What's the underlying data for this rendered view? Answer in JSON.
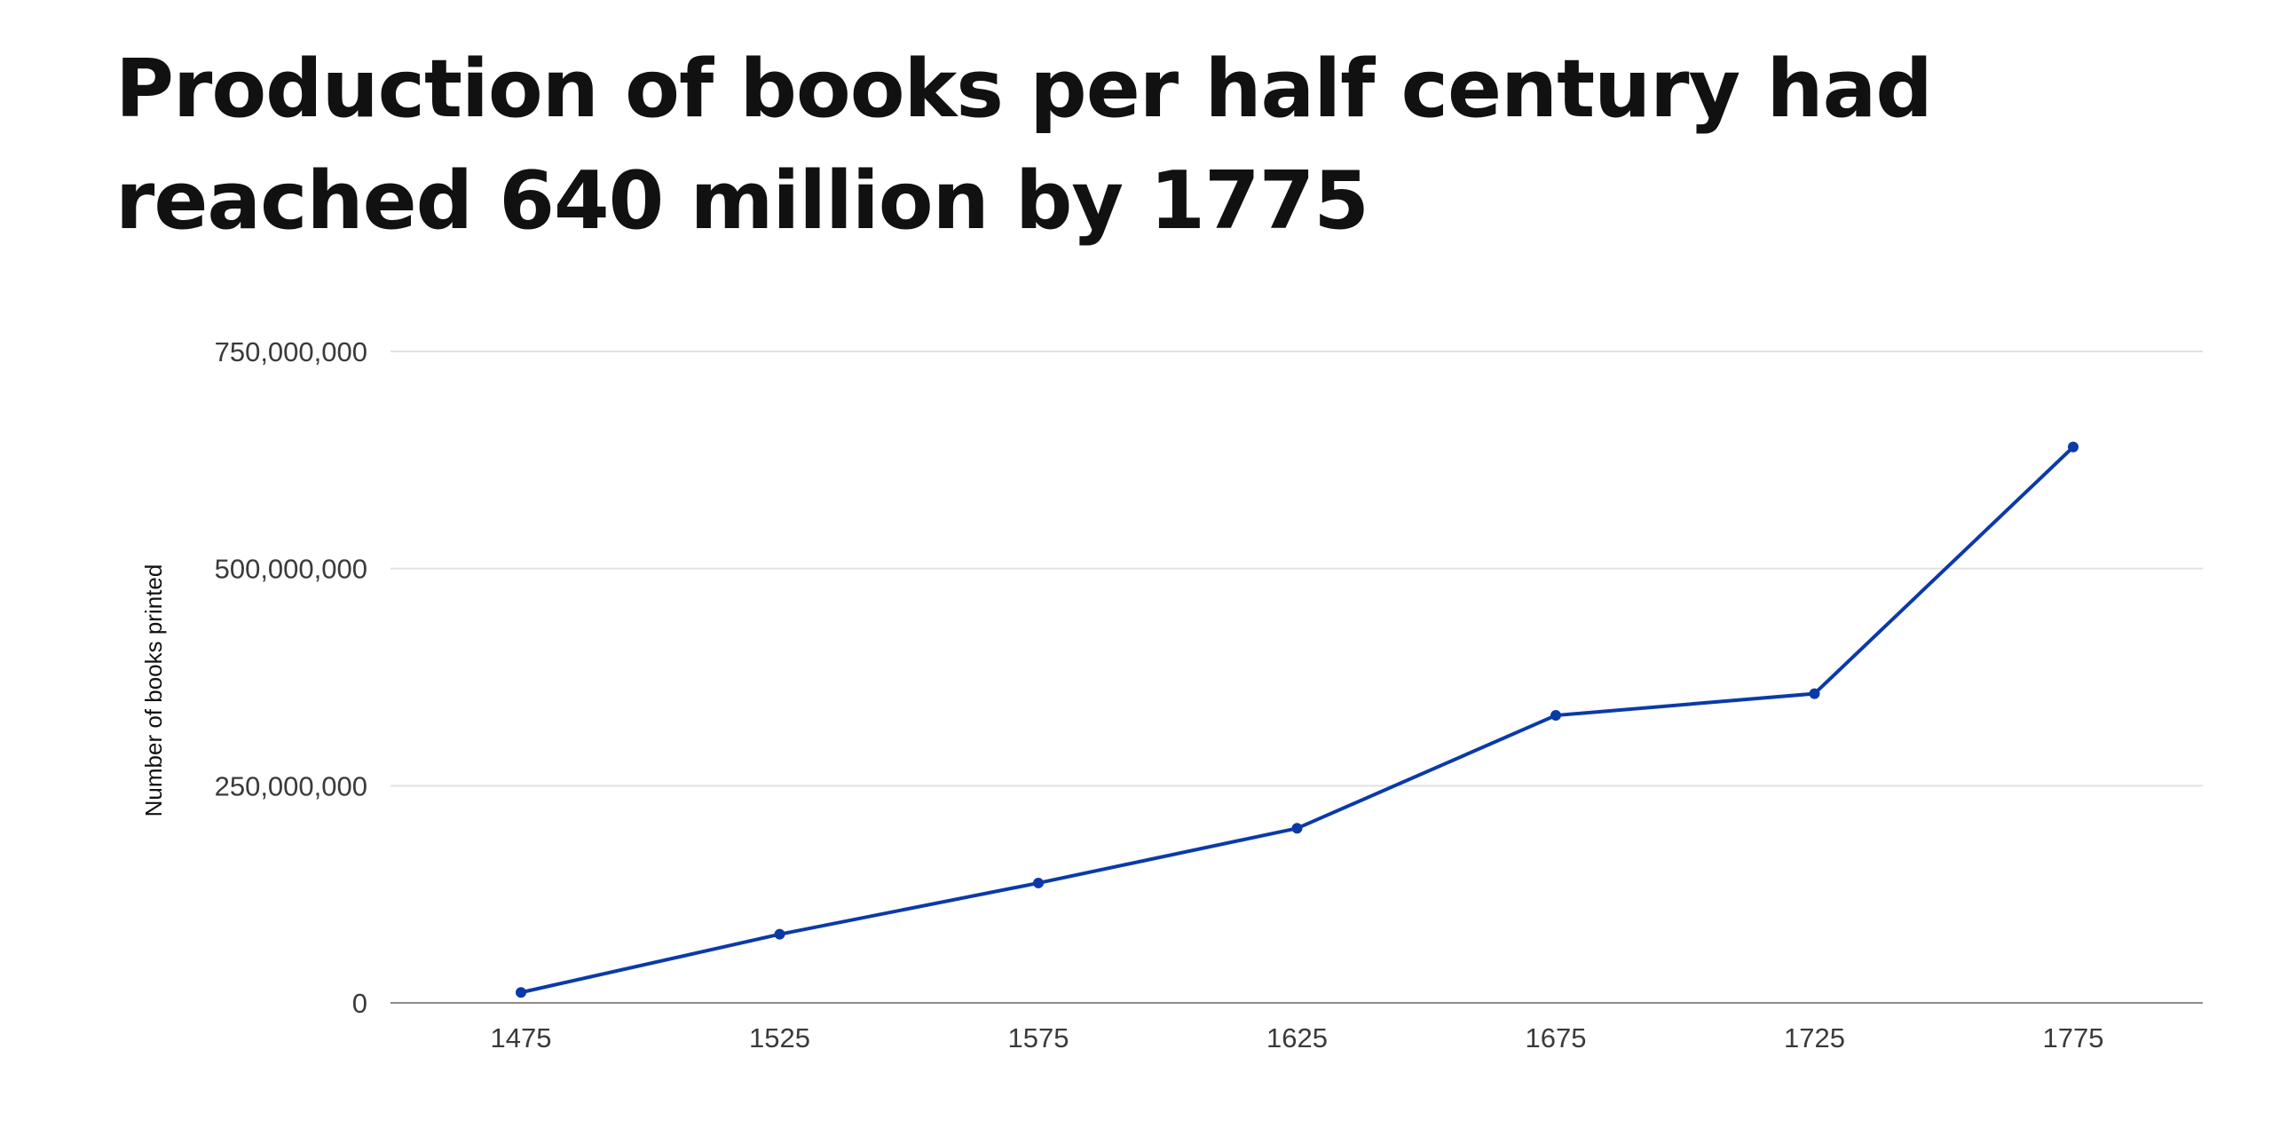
{
  "chart_data": {
    "type": "line",
    "title": "Production of books per half century had reached 640 million by 1775",
    "xlabel": "",
    "ylabel": "Number of books printed",
    "categories": [
      "1475",
      "1525",
      "1575",
      "1625",
      "1675",
      "1725",
      "1775"
    ],
    "series": [
      {
        "values": [
          12000000,
          79000000,
          138000000,
          201000000,
          331000000,
          356000000,
          640000000
        ]
      }
    ],
    "ylim": [
      0,
      750000000
    ],
    "yticks": [
      0,
      250000000,
      500000000,
      750000000
    ],
    "ytick_labels": [
      "0",
      "250,000,000",
      "500,000,000",
      "750,000,000"
    ],
    "grid": true,
    "legend": "none",
    "colors": {
      "line": "#0b3aa8",
      "grid": "#e2e2e2",
      "axis": "#8c8c8c"
    }
  }
}
